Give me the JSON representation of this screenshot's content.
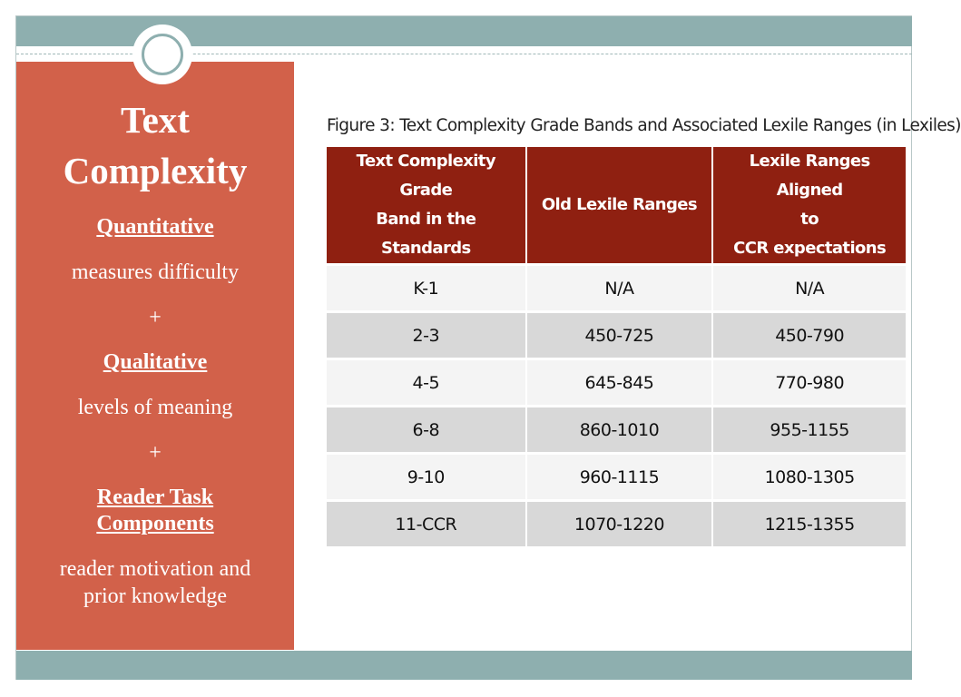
{
  "left_panel": {
    "title_line1": "Text",
    "title_line2": "Complexity",
    "quantitative_heading": "Quantitative",
    "quantitative_text": "measures difficulty",
    "plus1": "+",
    "qualitative_heading": "Qualitative",
    "qualitative_text": "levels of meaning",
    "plus2": "+",
    "reader_heading_line1": "Reader Task",
    "reader_heading_line2": "Components",
    "reader_text_line1": "reader  motivation and",
    "reader_text_line2": "prior knowledge"
  },
  "figure": {
    "caption": "Figure 3: Text Complexity Grade Bands and Associated Lexile Ranges (in Lexiles)",
    "headers": {
      "col1_line1": "Text Complexity Grade",
      "col1_line2": "Band in the Standards",
      "col2": "Old Lexile Ranges",
      "col3_line1": "Lexile Ranges Aligned",
      "col3_line2": "to",
      "col3_line3": "CCR expectations"
    },
    "rows": [
      {
        "band": "K-1",
        "old": "N/A",
        "aligned": "N/A"
      },
      {
        "band": "2-3",
        "old": "450-725",
        "aligned": "450-790"
      },
      {
        "band": "4-5",
        "old": "645-845",
        "aligned": "770-980"
      },
      {
        "band": "6-8",
        "old": "860-1010",
        "aligned": "955-1155"
      },
      {
        "band": "9-10",
        "old": "960-1115",
        "aligned": "1080-1305"
      },
      {
        "band": "11-CCR",
        "old": "1070-1220",
        "aligned": "1215-1355"
      }
    ]
  },
  "colors": {
    "accent_panel": "#d2614a",
    "band": "#8eafaf",
    "table_header": "#8f2011"
  }
}
